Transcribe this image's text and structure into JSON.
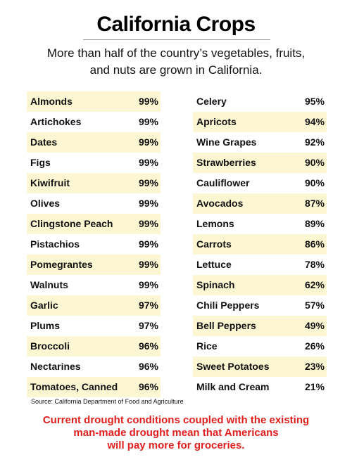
{
  "header": {
    "title": "California Crops",
    "subtitle": [
      "More than half of the country’s vegetables, fruits,",
      "and nuts are grown in California."
    ]
  },
  "tables": [
    {
      "rows": [
        [
          "Almonds",
          "99%"
        ],
        [
          "Artichokes",
          "99%"
        ],
        [
          "Dates",
          "99%"
        ],
        [
          "Figs",
          "99%"
        ],
        [
          "Kiwifruit",
          "99%"
        ],
        [
          "Olives",
          "99%"
        ],
        [
          "Clingstone Peach",
          "99%"
        ],
        [
          "Pistachios",
          "99%"
        ],
        [
          "Pomegrantes",
          "99%"
        ],
        [
          "Walnuts",
          "99%"
        ],
        [
          "Garlic",
          "97%"
        ],
        [
          "Plums",
          "97%"
        ],
        [
          "Broccoli",
          "96%"
        ],
        [
          "Nectarines",
          "96%"
        ],
        [
          "Tomatoes, Canned",
          "96%"
        ]
      ]
    },
    {
      "rows": [
        [
          "Celery",
          "95%"
        ],
        [
          "Apricots",
          "94%"
        ],
        [
          "Wine Grapes",
          "92%"
        ],
        [
          "Strawberries",
          "90%"
        ],
        [
          "Cauliflower",
          "90%"
        ],
        [
          "Avocados",
          "87%"
        ],
        [
          "Lemons",
          "89%"
        ],
        [
          "Carrots",
          "86%"
        ],
        [
          "Lettuce",
          "78%"
        ],
        [
          "Spinach",
          "62%"
        ],
        [
          "Chili Peppers",
          "57%"
        ],
        [
          "Bell Peppers",
          "49%"
        ],
        [
          "Rice",
          "26%"
        ],
        [
          "Sweet Potatoes",
          "23%"
        ],
        [
          "Milk and Cream",
          "21%"
        ]
      ]
    }
  ],
  "source": "Source: California Department of Food and Agriculture",
  "note": [
    "Current drought conditions coupled with the existing",
    "man-made drought mean that Americans",
    "will pay more for groceries."
  ]
}
